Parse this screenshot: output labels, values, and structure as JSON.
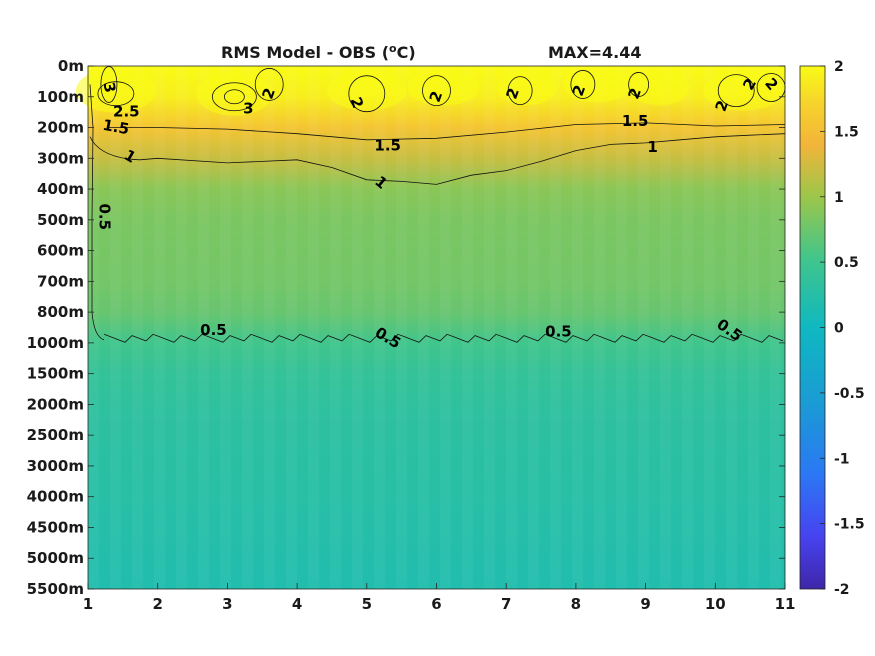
{
  "chart_data": {
    "type": "heatmap",
    "title": "RMS Model - OBS (",
    "title_super": "o",
    "title_unit_suffix": "C)",
    "max_label": "MAX=4.44",
    "x_ticks": [
      "1",
      "2",
      "3",
      "4",
      "5",
      "6",
      "7",
      "8",
      "9",
      "10",
      "11"
    ],
    "xlim": [
      1,
      11
    ],
    "y_ticks": [
      "0m",
      "100m",
      "200m",
      "300m",
      "400m",
      "500m",
      "600m",
      "700m",
      "800m",
      "1000m",
      "1500m",
      "2000m",
      "2500m",
      "3000m",
      "4000m",
      "4500m",
      "5000m",
      "5500m"
    ],
    "colorbar": {
      "ticks": [
        "2",
        "1.5",
        "1",
        "0.5",
        "0",
        "-0.5",
        "-1",
        "-1.5",
        "-2"
      ],
      "range": [
        -2,
        2
      ],
      "colormap": "parula"
    },
    "profile": [
      {
        "level": 0,
        "value": 2.0
      },
      {
        "level": 1,
        "value": 1.9
      },
      {
        "level": 2,
        "value": 1.55
      },
      {
        "level": 3,
        "value": 1.2
      },
      {
        "level": 4,
        "value": 0.9
      },
      {
        "level": 5,
        "value": 0.82
      },
      {
        "level": 6,
        "value": 0.8
      },
      {
        "level": 7,
        "value": 0.78
      },
      {
        "level": 8,
        "value": 0.72
      },
      {
        "level": 9,
        "value": 0.5
      },
      {
        "level": 10,
        "value": 0.38
      },
      {
        "level": 11,
        "value": 0.33
      },
      {
        "level": 12,
        "value": 0.3
      },
      {
        "level": 13,
        "value": 0.27
      },
      {
        "level": 14,
        "value": 0.25
      },
      {
        "level": 15,
        "value": 0.22
      },
      {
        "level": 16,
        "value": 0.2
      },
      {
        "level": 17,
        "value": 0.18
      }
    ],
    "contour_labels": [
      {
        "text": "3",
        "x": 1.3,
        "level": 0.7,
        "rot": 80
      },
      {
        "text": "2.5",
        "x": 1.55,
        "level": 1.5,
        "rot": 0
      },
      {
        "text": "1.5",
        "x": 1.4,
        "level": 2.0,
        "rot": 10
      },
      {
        "text": "3",
        "x": 3.3,
        "level": 1.4,
        "rot": 0
      },
      {
        "text": "2",
        "x": 3.6,
        "level": 0.9,
        "rot": -70
      },
      {
        "text": "2",
        "x": 4.85,
        "level": 1.2,
        "rot": 70
      },
      {
        "text": "2",
        "x": 6.0,
        "level": 1.0,
        "rot": -70
      },
      {
        "text": "2",
        "x": 7.1,
        "level": 0.9,
        "rot": -70
      },
      {
        "text": "2",
        "x": 8.05,
        "level": 0.8,
        "rot": -70
      },
      {
        "text": "2",
        "x": 8.85,
        "level": 0.9,
        "rot": -70
      },
      {
        "text": "2",
        "x": 10.1,
        "level": 1.3,
        "rot": -70
      },
      {
        "text": "2",
        "x": 10.5,
        "level": 0.6,
        "rot": -60
      },
      {
        "text": "2",
        "x": 10.8,
        "level": 0.6,
        "rot": 50
      },
      {
        "text": "1.5",
        "x": 5.3,
        "level": 2.6,
        "rot": 0
      },
      {
        "text": "1.5",
        "x": 8.85,
        "level": 1.8,
        "rot": 0
      },
      {
        "text": "1",
        "x": 1.6,
        "level": 2.95,
        "rot": 30
      },
      {
        "text": "1",
        "x": 5.2,
        "level": 3.8,
        "rot": 40
      },
      {
        "text": "1",
        "x": 9.1,
        "level": 2.65,
        "rot": 0
      },
      {
        "text": "0.5",
        "x": 1.23,
        "level": 4.9,
        "rot": 90
      },
      {
        "text": "0.5",
        "x": 2.8,
        "level": 8.6,
        "rot": 0
      },
      {
        "text": "0.5",
        "x": 5.3,
        "level": 8.85,
        "rot": 30
      },
      {
        "text": "0.5",
        "x": 7.75,
        "level": 8.65,
        "rot": 0
      },
      {
        "text": "0.5",
        "x": 10.2,
        "level": 8.6,
        "rot": 35
      }
    ]
  }
}
